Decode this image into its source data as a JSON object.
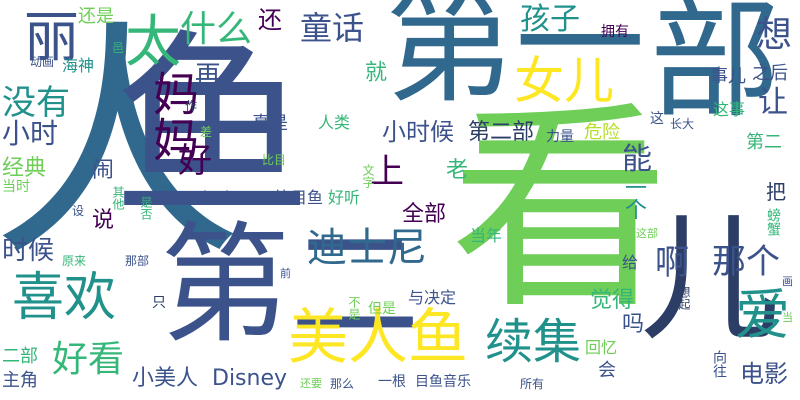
{
  "words": {
    "ren": "人",
    "yu": "鱼",
    "kan": "看",
    "diyi": "第一",
    "bu": "部",
    "dier": "第二",
    "li": "丽",
    "ai": "爱",
    "meirenyu": "美人鱼",
    "xuji": "续集",
    "xihuan": "喜欢",
    "nver": "女儿",
    "disini": "迪士尼",
    "er": "儿",
    "mama": "妈妈",
    "da": "太",
    "haizi": "孩子",
    "tonghua": "童话",
    "shenme": "什么",
    "xiang": "想",
    "haikan": "好看",
    "meiyou": "没有",
    "xiaoshi": "小时",
    "xiaoshihou": "小时候",
    "dierbu": "第二部",
    "shihou": "时候",
    "a": "啊",
    "nage": "那个",
    "xiaomeiren": "小美人",
    "disney": "Disney",
    "hai": "还",
    "haishi": "还是",
    "zai": "再",
    "rang": "让",
    "shang": "上",
    "quanbu": "全部",
    "jiu": "就",
    "lao": "老",
    "neng": "能",
    "yige": "一个",
    "jingdian": "经典",
    "nao": "闹",
    "hao": "好",
    "ercibu": "二部",
    "zhujue": "主角",
    "shuo": "说",
    "dianying": "电影",
    "juede": "觉得",
    "ma": "吗",
    "huiyi": "回忆",
    "hui": "会",
    "dangnian": "当年",
    "yujueding": "与决定",
    "gei": "给",
    "zhidiemu": "比目鱼",
    "haoting": "好听",
    "dvd": "dvd",
    "zhenshi": "真是",
    "renlei": "人类",
    "liliang": "力量",
    "weixian": "危险",
    "zhishi": "之后",
    "shier": "事儿",
    "yongyou": "拥有",
    "zheshi": "这事",
    "zhe": "这",
    "zhangda": "长大",
    "donghua": "动画",
    "haishen": "海神",
    "dangshi": "当时",
    "she": "设",
    "yuanlai": "原来",
    "nabu": "那部",
    "zhi": "只",
    "zhenggen": "一根",
    "muyuyinyue": "目鱼音乐",
    "suoyou": "所有",
    "name": "那么",
    "huanyao": "还要",
    "danshi": "但是",
    "bushi": "不是",
    "xiangqi": "想起",
    "xiangwang": "向往",
    "pangxie": "螃蟹",
    "ba": "把",
    "zhebu": "这部",
    "hua": "画",
    "dang": "当",
    "cha": "差",
    "zuo": "作",
    "qian": "前",
    "bimu": "比目",
    "shifou": "是否",
    "qita": "其他",
    "bi": "邑",
    "wen": "文字",
    "yao": "要",
    "zi": "自"
  },
  "colors": {
    "purple": "#440154",
    "indigo": "#3b528b",
    "blue": "#31688e",
    "teal": "#21918c",
    "green": "#35b779",
    "lime": "#6ece58",
    "yellow": "#b5de2b",
    "sun": "#fde725"
  }
}
